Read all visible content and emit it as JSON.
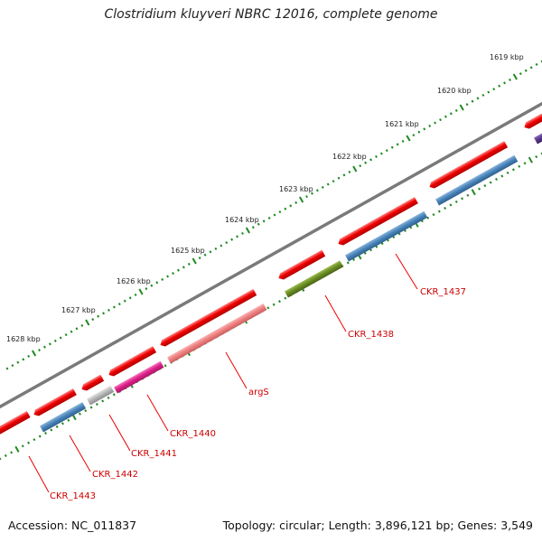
{
  "title": "Clostridium kluyveri NBRC 12016, complete genome",
  "accession": "Accession: NC_011837",
  "topology": "Topology: circular; Length: 3,896,121 bp; Genes: 3,549",
  "kbp_labels": [
    "1619 kbp",
    "1620 kbp",
    "1621 kbp",
    "1622 kbp",
    "1623 kbp",
    "1624 kbp",
    "1625 kbp",
    "1626 kbp",
    "1627 kbp",
    "1628 kbp"
  ],
  "gene_labels": [
    "CKR_1437",
    "CKR_1438",
    "argS",
    "CKR_1440",
    "CKR_1441",
    "CKR_1442",
    "CKR_1443"
  ],
  "colors": {
    "backbone": "#7a7a7a",
    "ticks": "#1f8a1f",
    "feature_red": "#ee0000",
    "cds_blue": "#4a86bb",
    "cds_green": "#6b8e23",
    "cds_pink": "#f08080",
    "cds_magenta": "#e0208a",
    "cds_gray": "#b8b8b8",
    "cds_purple": "#5a3a8a",
    "label_red": "#cc0000"
  }
}
